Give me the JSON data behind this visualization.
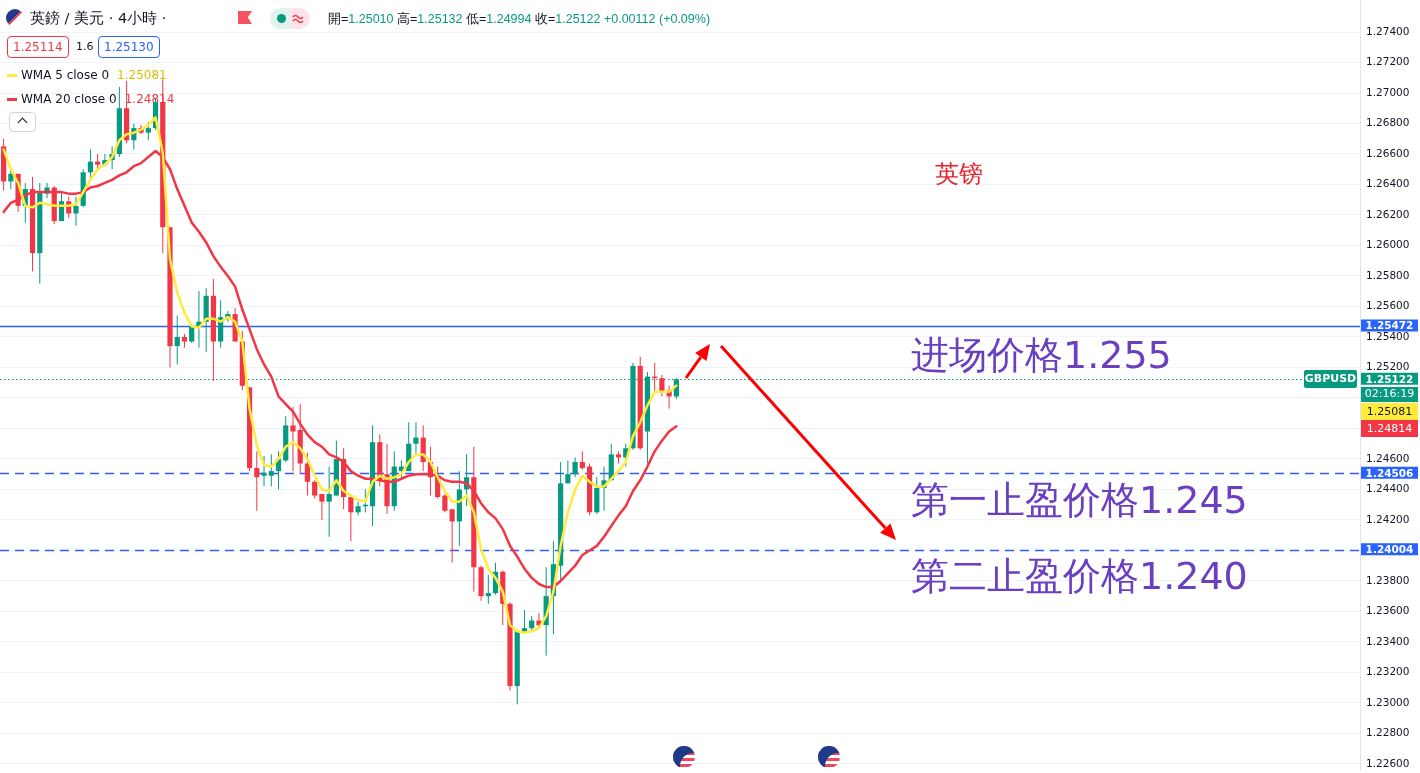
{
  "chart_data": {
    "type": "candlestick",
    "title": "英鎊 / 美元 · 4小時 ·",
    "subtitle": "開=1.25010 高=1.25132 低=1.24994 收=1.25122 +0.00112 (+0.09%)",
    "categories": [
      null,
      null,
      null,
      null,
      null,
      null,
      null,
      null,
      null,
      null,
      null,
      null,
      null,
      null,
      null,
      null,
      null,
      null,
      null,
      null,
      null,
      null,
      null,
      null,
      null,
      null,
      null,
      null,
      null,
      null,
      null,
      null,
      null,
      null,
      null,
      null,
      null,
      null,
      null,
      null,
      null,
      null,
      null,
      null,
      null,
      null,
      null,
      null,
      null,
      null,
      null,
      null,
      null,
      null,
      null,
      null,
      null,
      null,
      null,
      null,
      null,
      null,
      null,
      null,
      null,
      null,
      null,
      null,
      null,
      null,
      null,
      null,
      null,
      null,
      null,
      null,
      null,
      null,
      null,
      null,
      null,
      null,
      null,
      null,
      null,
      null,
      null,
      null,
      null,
      null,
      null,
      null,
      null,
      null,
      null,
      null,
      null,
      null,
      null,
      null,
      null,
      null,
      null,
      null,
      null,
      null,
      null,
      null,
      null,
      null,
      null,
      null,
      null,
      null,
      null,
      null,
      null,
      null,
      null,
      null,
      null,
      null,
      null,
      null,
      null,
      null,
      null,
      null,
      null,
      null,
      null,
      null,
      null,
      null,
      null,
      null,
      null,
      null,
      null,
      null,
      null,
      null,
      null,
      null,
      null,
      null,
      null,
      null,
      null,
      null,
      null,
      null,
      null,
      null,
      null,
      null,
      null,
      null,
      null,
      null,
      null,
      null,
      null,
      null,
      null,
      null,
      null,
      null,
      null,
      null,
      null,
      null,
      null,
      null,
      null,
      null,
      null,
      null,
      null,
      null,
      null,
      null,
      null,
      null,
      null,
      null,
      null,
      null
    ],
    "ohlc": [
      [
        1.2665,
        1.267,
        1.2636,
        1.2642
      ],
      [
        1.2642,
        1.265,
        1.2637,
        1.2647
      ],
      [
        1.2647,
        1.2647,
        1.2622,
        1.2626
      ],
      [
        1.2626,
        1.2641,
        1.2615,
        1.2637
      ],
      [
        1.2637,
        1.2645,
        1.2583,
        1.2595
      ],
      [
        1.2595,
        1.2641,
        1.2575,
        1.2635
      ],
      [
        1.2634,
        1.2641,
        1.2631,
        1.2638
      ],
      [
        1.2638,
        1.2639,
        1.2614,
        1.2616
      ],
      [
        1.2616,
        1.2635,
        1.2616,
        1.2629
      ],
      [
        1.2629,
        1.2632,
        1.2618,
        1.2621
      ],
      [
        1.2621,
        1.2632,
        1.2613,
        1.2626
      ],
      [
        1.2626,
        1.265,
        1.2625,
        1.2648
      ],
      [
        1.2648,
        1.2663,
        1.2645,
        1.2655
      ],
      [
        1.2655,
        1.266,
        1.265,
        1.2653
      ],
      [
        1.2653,
        1.266,
        1.2652,
        1.2656
      ],
      [
        1.2656,
        1.2665,
        1.265,
        1.266
      ],
      [
        1.266,
        1.2704,
        1.2658,
        1.269
      ],
      [
        1.269,
        1.2708,
        1.2667,
        1.2669
      ],
      [
        1.2669,
        1.268,
        1.2663,
        1.2677
      ],
      [
        1.2677,
        1.2679,
        1.2673,
        1.2674
      ],
      [
        1.2674,
        1.2681,
        1.2669,
        1.2677
      ],
      [
        1.2677,
        1.2696,
        1.2676,
        1.2694
      ],
      [
        1.2694,
        1.2709,
        1.2595,
        1.2612
      ],
      [
        1.2612,
        1.2612,
        1.252,
        1.2534
      ],
      [
        1.2534,
        1.2554,
        1.2522,
        1.254
      ],
      [
        1.254,
        1.2542,
        1.2533,
        1.2537
      ],
      [
        1.2537,
        1.2548,
        1.2536,
        1.2547
      ],
      [
        1.2547,
        1.257,
        1.2533,
        1.255
      ],
      [
        1.255,
        1.2572,
        1.253,
        1.2567
      ],
      [
        1.2567,
        1.2578,
        1.2511,
        1.2537
      ],
      [
        1.2537,
        1.2564,
        1.2533,
        1.2553
      ],
      [
        1.2552,
        1.2557,
        1.255,
        1.2555
      ],
      [
        1.2555,
        1.2559,
        1.2537,
        1.2537
      ],
      [
        1.2537,
        1.2544,
        1.2505,
        1.2508
      ],
      [
        1.2507,
        1.2507,
        1.2452,
        1.2454
      ],
      [
        1.2454,
        1.2465,
        1.2426,
        1.2448
      ],
      [
        1.2449,
        1.2462,
        1.2442,
        1.2451
      ],
      [
        1.2449,
        1.2463,
        1.2442,
        1.2452
      ],
      [
        1.2452,
        1.2465,
        1.244,
        1.246
      ],
      [
        1.2459,
        1.2488,
        1.2458,
        1.2482
      ],
      [
        1.2482,
        1.2494,
        1.2452,
        1.2478
      ],
      [
        1.2479,
        1.2496,
        1.245,
        1.2457
      ],
      [
        1.2457,
        1.2464,
        1.2436,
        1.2445
      ],
      [
        1.2445,
        1.2446,
        1.2434,
        1.2436
      ],
      [
        1.2437,
        1.2437,
        1.242,
        1.2432
      ],
      [
        1.2432,
        1.2455,
        1.2409,
        1.2437
      ],
      [
        1.2436,
        1.2472,
        1.2436,
        1.246
      ],
      [
        1.246,
        1.2467,
        1.2427,
        1.2435
      ],
      [
        1.2435,
        1.2435,
        1.2406,
        1.2425
      ],
      [
        1.2425,
        1.2432,
        1.2423,
        1.2429
      ],
      [
        1.2429,
        1.244,
        1.2425,
        1.243
      ],
      [
        1.2429,
        1.2482,
        1.2416,
        1.2471
      ],
      [
        1.2471,
        1.2476,
        1.2442,
        1.2446
      ],
      [
        1.245,
        1.247,
        1.2424,
        1.2429
      ],
      [
        1.2429,
        1.2465,
        1.2426,
        1.2455
      ],
      [
        1.2452,
        1.2459,
        1.2447,
        1.2455
      ],
      [
        1.2452,
        1.2484,
        1.2452,
        1.247
      ],
      [
        1.247,
        1.2484,
        1.2462,
        1.2474
      ],
      [
        1.2474,
        1.2482,
        1.2452,
        1.2458
      ],
      [
        1.2458,
        1.2468,
        1.2436,
        1.2448
      ],
      [
        1.2449,
        1.2455,
        1.2434,
        1.2435
      ],
      [
        1.2436,
        1.2437,
        1.2425,
        1.2426
      ],
      [
        1.2427,
        1.2427,
        1.2392,
        1.2419
      ],
      [
        1.2419,
        1.2452,
        1.2403,
        1.244
      ],
      [
        1.244,
        1.2463,
        1.2429,
        1.2448
      ],
      [
        1.2448,
        1.2468,
        1.2373,
        1.2389
      ],
      [
        1.2389,
        1.239,
        1.2367,
        1.237
      ],
      [
        1.237,
        1.2384,
        1.2365,
        1.2372
      ],
      [
        1.2372,
        1.2392,
        1.2371,
        1.2386
      ],
      [
        1.2386,
        1.2387,
        1.2351,
        1.2365
      ],
      [
        1.2365,
        1.2366,
        1.2308,
        1.2311
      ],
      [
        1.2311,
        1.2348,
        1.2299,
        1.2347
      ],
      [
        1.2347,
        1.2361,
        1.2346,
        1.2349
      ],
      [
        1.2349,
        1.2357,
        1.2347,
        1.2354
      ],
      [
        1.2354,
        1.2359,
        1.2349,
        1.2351
      ],
      [
        1.2351,
        1.2389,
        1.2331,
        1.237
      ],
      [
        1.237,
        1.2406,
        1.2345,
        1.2391
      ],
      [
        1.239,
        1.2458,
        1.2381,
        1.2444
      ],
      [
        1.2444,
        1.2459,
        1.2444,
        1.245
      ],
      [
        1.245,
        1.2461,
        1.2448,
        1.2458
      ],
      [
        1.2458,
        1.2465,
        1.2453,
        1.2454
      ],
      [
        1.2455,
        1.2457,
        1.2423,
        1.2425
      ],
      [
        1.2425,
        1.2448,
        1.2424,
        1.2441
      ],
      [
        1.2441,
        1.2455,
        1.2426,
        1.2446
      ],
      [
        1.2446,
        1.247,
        1.2446,
        1.2463
      ],
      [
        1.2463,
        1.2465,
        1.2457,
        1.2461
      ],
      [
        1.2461,
        1.247,
        1.2455,
        1.2467
      ],
      [
        1.2467,
        1.2523,
        1.2466,
        1.2521
      ],
      [
        1.2521,
        1.2527,
        1.2466,
        1.2467
      ],
      [
        1.2478,
        1.2517,
        1.2457,
        1.2514
      ],
      [
        1.2514,
        1.2523,
        1.2504,
        1.2513
      ],
      [
        1.2513,
        1.2515,
        1.2501,
        1.2504
      ],
      [
        1.2505,
        1.2508,
        1.2493,
        1.2501
      ],
      [
        1.2501,
        1.25132,
        1.24994,
        1.25122
      ],
      null,
      null,
      null,
      null,
      null,
      null,
      null,
      null,
      null,
      null,
      null,
      null,
      null,
      null,
      null,
      null,
      null,
      null,
      null,
      null,
      null,
      null,
      null,
      null,
      null,
      null,
      null,
      null,
      null,
      null,
      null,
      null,
      null,
      null,
      null,
      null,
      null,
      null,
      null,
      null,
      null,
      null,
      null,
      null,
      null,
      null,
      null,
      null,
      null,
      null,
      null,
      null,
      null,
      null,
      null,
      null,
      null,
      null,
      null,
      null,
      null,
      null,
      null,
      null,
      null,
      null,
      null,
      null,
      null,
      null,
      null,
      null,
      null,
      null,
      null,
      null,
      null,
      null,
      null,
      null,
      null,
      null,
      null,
      null,
      null,
      null,
      null,
      null,
      null,
      null,
      null,
      null,
      null,
      null
    ],
    "series": [
      {
        "name": "WMA 5 close 0",
        "type": "line",
        "color": "#ffeb3b",
        "values": [
          1.2663,
          1.265,
          1.2641,
          1.2626,
          1.2625,
          1.2628,
          1.2627,
          1.2626,
          1.2626,
          1.2626,
          1.2627,
          1.2635,
          1.2643,
          1.265,
          1.2653,
          1.2658,
          1.2669,
          1.2673,
          1.2674,
          1.2676,
          1.2679,
          1.2684,
          1.2661,
          1.2591,
          1.2569,
          1.2556,
          1.2547,
          1.2546,
          1.2552,
          1.2552,
          1.255,
          1.2553,
          1.255,
          1.2537,
          1.2493,
          1.2469,
          1.2456,
          1.2455,
          1.246,
          1.2468,
          1.2471,
          1.2467,
          1.246,
          1.2449,
          1.244,
          1.2439,
          1.2446,
          1.2439,
          1.2436,
          1.2433,
          1.2432,
          1.2445,
          1.2449,
          1.2447,
          1.2448,
          1.245,
          1.2458,
          1.2463,
          1.2463,
          1.2458,
          1.2448,
          1.2439,
          1.2432,
          1.2432,
          1.2436,
          1.2425,
          1.2401,
          1.2388,
          1.2382,
          1.2373,
          1.2351,
          1.2347,
          1.2346,
          1.2347,
          1.2349,
          1.2357,
          1.2373,
          1.2403,
          1.2425,
          1.244,
          1.2449,
          1.2445,
          1.2442,
          1.2442,
          1.2447,
          1.2452,
          1.2458,
          1.2475,
          1.2484,
          1.2495,
          1.2504,
          1.2504,
          1.2504,
          1.25081,
          null,
          null,
          null,
          null,
          null,
          null,
          null,
          null,
          null,
          null,
          null,
          null,
          null,
          null,
          null,
          null,
          null,
          null,
          null,
          null,
          null,
          null,
          null,
          null,
          null,
          null,
          null,
          null,
          null,
          null,
          null,
          null,
          null,
          null,
          null,
          null,
          null,
          null,
          null,
          null,
          null,
          null,
          null,
          null,
          null,
          null,
          null,
          null,
          null,
          null,
          null,
          null,
          null,
          null,
          null,
          null,
          null,
          null,
          null,
          null,
          null,
          null,
          null,
          null,
          null,
          null,
          null,
          null,
          null,
          null,
          null,
          null,
          null,
          null,
          null,
          null,
          null,
          null,
          null,
          null,
          null,
          null,
          null,
          null,
          null,
          null,
          null,
          null,
          null,
          null,
          null,
          null,
          null,
          null
        ]
      },
      {
        "name": "WMA 20 close 0",
        "type": "line",
        "color": "#f23645",
        "values": [
          1.2622,
          1.2628,
          1.263,
          1.2633,
          1.2635,
          1.2635,
          1.2635,
          1.2635,
          1.2635,
          1.2634,
          1.2634,
          1.2635,
          1.2638,
          1.2639,
          1.2641,
          1.2643,
          1.2646,
          1.2648,
          1.2652,
          1.2654,
          1.2658,
          1.2662,
          1.2658,
          1.265,
          1.2637,
          1.2626,
          1.2615,
          1.2609,
          1.2602,
          1.2593,
          1.2586,
          1.258,
          1.2573,
          1.2558,
          1.2545,
          1.2532,
          1.2522,
          1.2514,
          1.2501,
          1.2496,
          1.2491,
          1.2483,
          1.2476,
          1.2471,
          1.2468,
          1.2463,
          1.2461,
          1.2458,
          1.2452,
          1.2449,
          1.2447,
          1.2447,
          1.2446,
          1.2445,
          1.2445,
          1.2447,
          1.2449,
          1.245,
          1.245,
          1.245,
          1.2449,
          1.2446,
          1.2445,
          1.2445,
          1.2444,
          1.2439,
          1.2431,
          1.2425,
          1.2421,
          1.2414,
          1.2403,
          1.2396,
          1.2388,
          1.2382,
          1.2378,
          1.2376,
          1.2376,
          1.238,
          1.2385,
          1.239,
          1.2397,
          1.24,
          1.2403,
          1.2409,
          1.2416,
          1.2423,
          1.2429,
          1.2439,
          1.2446,
          1.2455,
          1.2465,
          1.2472,
          1.2478,
          1.24814,
          null,
          null,
          null,
          null,
          null,
          null,
          null,
          null,
          null,
          null,
          null,
          null,
          null,
          null,
          null,
          null,
          null,
          null,
          null,
          null,
          null,
          null,
          null,
          null,
          null,
          null,
          null,
          null,
          null,
          null,
          null,
          null,
          null,
          null,
          null,
          null,
          null,
          null,
          null,
          null,
          null,
          null,
          null,
          null,
          null,
          null,
          null,
          null,
          null,
          null,
          null,
          null,
          null,
          null,
          null,
          null,
          null,
          null,
          null,
          null,
          null,
          null,
          null,
          null,
          null,
          null,
          null,
          null,
          null,
          null,
          null,
          null,
          null,
          null,
          null,
          null,
          null,
          null,
          null,
          null,
          null,
          null,
          null,
          null,
          null,
          null,
          null,
          null,
          null,
          null,
          null,
          null,
          null,
          null
        ]
      }
    ],
    "ylim": [
      1.2256,
      1.2761
    ],
    "yticks": [
      {
        "value": 1.226,
        "label": "1.22600"
      },
      {
        "value": 1.228,
        "label": "1.22800"
      },
      {
        "value": 1.23,
        "label": "1.23000"
      },
      {
        "value": 1.232,
        "label": "1.23200"
      },
      {
        "value": 1.234,
        "label": "1.23400"
      },
      {
        "value": 1.236,
        "label": "1.23600"
      },
      {
        "value": 1.238,
        "label": "1.23800"
      },
      {
        "value": 1.24,
        "label": null
      },
      {
        "value": 1.242,
        "label": "1.24200"
      },
      {
        "value": 1.244,
        "label": "1.24400"
      },
      {
        "value": 1.246,
        "label": "1.24600"
      },
      {
        "value": 1.248,
        "label": null
      },
      {
        "value": 1.25,
        "label": null
      },
      {
        "value": 1.252,
        "label": "1.25200"
      },
      {
        "value": 1.254,
        "label": "1.25400"
      },
      {
        "value": 1.256,
        "label": "1.25600"
      },
      {
        "value": 1.258,
        "label": "1.25800"
      },
      {
        "value": 1.26,
        "label": "1.26000"
      },
      {
        "value": 1.262,
        "label": "1.26200"
      },
      {
        "value": 1.264,
        "label": "1.26400"
      },
      {
        "value": 1.266,
        "label": "1.26600"
      },
      {
        "value": 1.268,
        "label": "1.26800"
      },
      {
        "value": 1.27,
        "label": "1.27000"
      },
      {
        "value": 1.272,
        "label": "1.27200"
      },
      {
        "value": 1.274,
        "label": "1.27400"
      }
    ],
    "ref_lines": [
      {
        "axis": "y",
        "value": 1.25472,
        "label": "1.25472",
        "color": "#2962ff",
        "line_style": "solid"
      },
      {
        "axis": "y",
        "value": 1.25122,
        "label": "1.25122",
        "color": "#089981",
        "line_style": "dotted"
      },
      {
        "axis": "y",
        "value": 1.24506,
        "label": "1.24506",
        "color": "#2962ff",
        "line_style": "dashed"
      },
      {
        "axis": "y",
        "value": 1.24004,
        "label": "1.24004",
        "color": "#2962ff",
        "line_style": "dashed"
      }
    ],
    "annotations": [
      "1.25114",
      "1.6",
      "1.25130",
      "英镑",
      "进场价格1.255",
      "第一止盈价格1.245",
      "第二止盈价格1.240",
      "GBPUSD",
      "02:16:19",
      "1.25081",
      "1.24814"
    ],
    "grid": "y",
    "legend": "top left",
    "tick_labels": "y",
    "marker": "none",
    "line_style": "solid"
  }
}
